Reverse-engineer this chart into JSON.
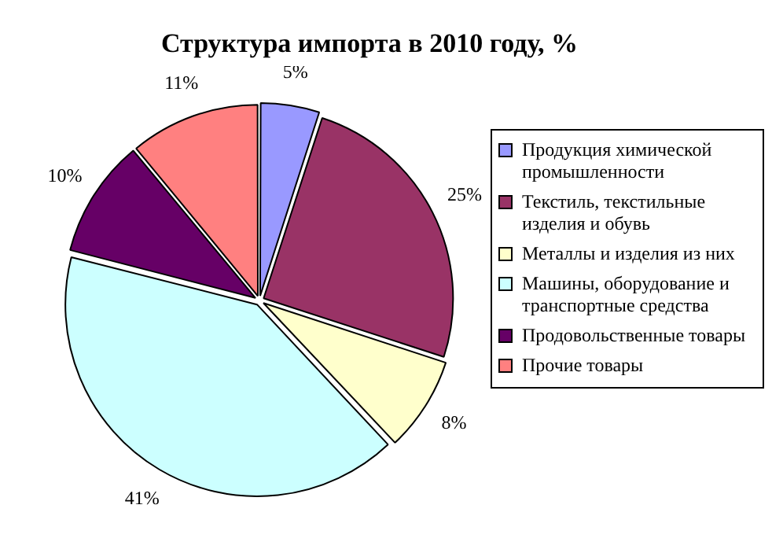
{
  "chart_data": {
    "type": "pie",
    "title": "Структура импорта в 2010 году, %",
    "categories": [
      "Продукция химической промышленности",
      "Текстиль, текстильные изделия и обувь",
      "Металлы и изделия из них",
      "Машины, оборудование и транспортные средства",
      "Продовольственные товары",
      "Прочие товары"
    ],
    "values": [
      5,
      25,
      8,
      41,
      10,
      11
    ],
    "colors": [
      "#9999ff",
      "#993366",
      "#ffffcc",
      "#ccffff",
      "#660066",
      "#ff8080"
    ],
    "value_labels": [
      "5%",
      "25%",
      "8%",
      "41%",
      "10%",
      "11%"
    ],
    "legend": "right"
  }
}
